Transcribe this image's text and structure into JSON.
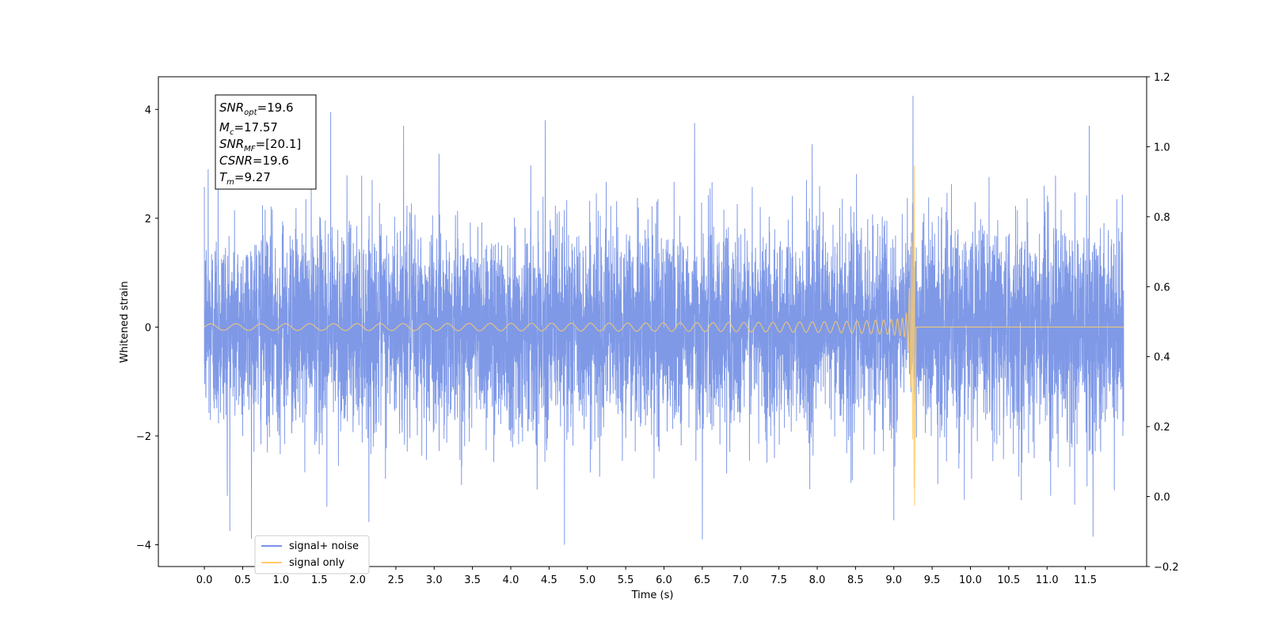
{
  "chart_data": {
    "type": "line",
    "title": "",
    "xlabel": "Time (s)",
    "ylabel": "Whitened strain",
    "xlim": [
      -0.6,
      12.3
    ],
    "ylim": [
      -4.4,
      4.6
    ],
    "y2lim": [
      -0.2,
      1.2
    ],
    "xticks": [
      "0.0",
      "0.5",
      "1.0",
      "1.5",
      "2.0",
      "2.5",
      "3.0",
      "3.5",
      "4.0",
      "4.5",
      "5.0",
      "5.5",
      "6.0",
      "6.5",
      "7.0",
      "7.5",
      "8.0",
      "8.5",
      "9.0",
      "9.5",
      "10.0",
      "10.5",
      "11.0",
      "11.5"
    ],
    "yticks": [
      "−4",
      "−2",
      "0",
      "2",
      "4"
    ],
    "y2ticks": [
      "−0.2",
      "0.0",
      "0.2",
      "0.4",
      "0.6",
      "0.8",
      "1.0",
      "1.2"
    ],
    "grid": false,
    "legend_position": "lower-left",
    "series": [
      {
        "name": "signal+ noise",
        "color": "#7893e6",
        "x_range": [
          0.0,
          12.0
        ],
        "typical_envelope": [
          -1.6,
          1.6
        ],
        "notable_peaks": [
          {
            "x": 0.05,
            "y": 2.9
          },
          {
            "x": 0.18,
            "y": 2.65
          },
          {
            "x": 1.65,
            "y": 3.95
          },
          {
            "x": 2.6,
            "y": 3.7
          },
          {
            "x": 4.45,
            "y": 3.8
          },
          {
            "x": 6.4,
            "y": 3.75
          },
          {
            "x": 9.25,
            "y": 4.25
          },
          {
            "x": 11.55,
            "y": 3.7
          },
          {
            "x": 0.3,
            "y": -3.1
          },
          {
            "x": 1.6,
            "y": -3.3
          },
          {
            "x": 4.7,
            "y": -4.0
          },
          {
            "x": 6.5,
            "y": -3.9
          },
          {
            "x": 9.0,
            "y": -3.55
          },
          {
            "x": 11.6,
            "y": -3.85
          }
        ]
      },
      {
        "name": "signal only",
        "color": "#ffcc66",
        "x_range": [
          0.0,
          12.0
        ],
        "merger_time": 9.27,
        "peak_y": 3.3,
        "trough_y": -3.4,
        "early_amplitude": 0.06,
        "post_merger_value": 0.0
      }
    ],
    "annotation": {
      "lines": [
        {
          "sym": "SNR",
          "sub": "opt",
          "val": "=19.6"
        },
        {
          "sym": "M",
          "sub": "c",
          "val": "=17.57"
        },
        {
          "sym": "SNR",
          "sub": "MF",
          "val": "=[20.1]"
        },
        {
          "sym": "CSNR",
          "sub": "",
          "val": "=19.6"
        },
        {
          "sym": "T",
          "sub": "m",
          "val": "=9.27"
        }
      ]
    }
  }
}
